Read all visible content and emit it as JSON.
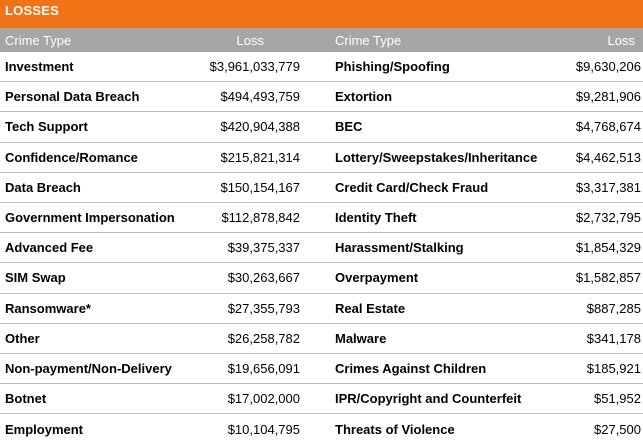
{
  "banner": {
    "title": "LOSSES"
  },
  "header": {
    "type": "Crime Type",
    "loss": "Loss"
  },
  "left": [
    {
      "type": "Investment",
      "loss": "$3,961,033,779"
    },
    {
      "type": "Personal Data Breach",
      "loss": "$494,493,759"
    },
    {
      "type": "Tech Support",
      "loss": "$420,904,388"
    },
    {
      "type": "Confidence/Romance",
      "loss": "$215,821,314"
    },
    {
      "type": "Data Breach",
      "loss": "$150,154,167"
    },
    {
      "type": "Government Impersonation",
      "loss": "$112,878,842"
    },
    {
      "type": "Advanced Fee",
      "loss": "$39,375,337"
    },
    {
      "type": "SIM Swap",
      "loss": "$30,263,667"
    },
    {
      "type": "Ransomware*",
      "loss": "$27,355,793"
    },
    {
      "type": "Other",
      "loss": "$26,258,782"
    },
    {
      "type": "Non-payment/Non-Delivery",
      "loss": "$19,656,091"
    },
    {
      "type": "Botnet",
      "loss": "$17,002,000"
    },
    {
      "type": "Employment",
      "loss": "$10,104,795"
    }
  ],
  "right": [
    {
      "type": "Phishing/Spoofing",
      "loss": "$9,630,206"
    },
    {
      "type": "Extortion",
      "loss": "$9,281,906"
    },
    {
      "type": "BEC",
      "loss": "$4,768,674"
    },
    {
      "type": "Lottery/Sweepstakes/Inheritance",
      "loss": "$4,462,513"
    },
    {
      "type": "Credit Card/Check Fraud",
      "loss": "$3,317,381"
    },
    {
      "type": "Identity Theft",
      "loss": "$2,732,795"
    },
    {
      "type": "Harassment/Stalking",
      "loss": "$1,854,329"
    },
    {
      "type": "Overpayment",
      "loss": "$1,582,857"
    },
    {
      "type": "Real Estate",
      "loss": "$887,285"
    },
    {
      "type": "Malware",
      "loss": "$341,178"
    },
    {
      "type": "Crimes Against Children",
      "loss": "$185,921"
    },
    {
      "type": "IPR/Copyright and Counterfeit",
      "loss": "$51,952"
    },
    {
      "type": "Threats of Violence",
      "loss": "$27,500"
    }
  ]
}
